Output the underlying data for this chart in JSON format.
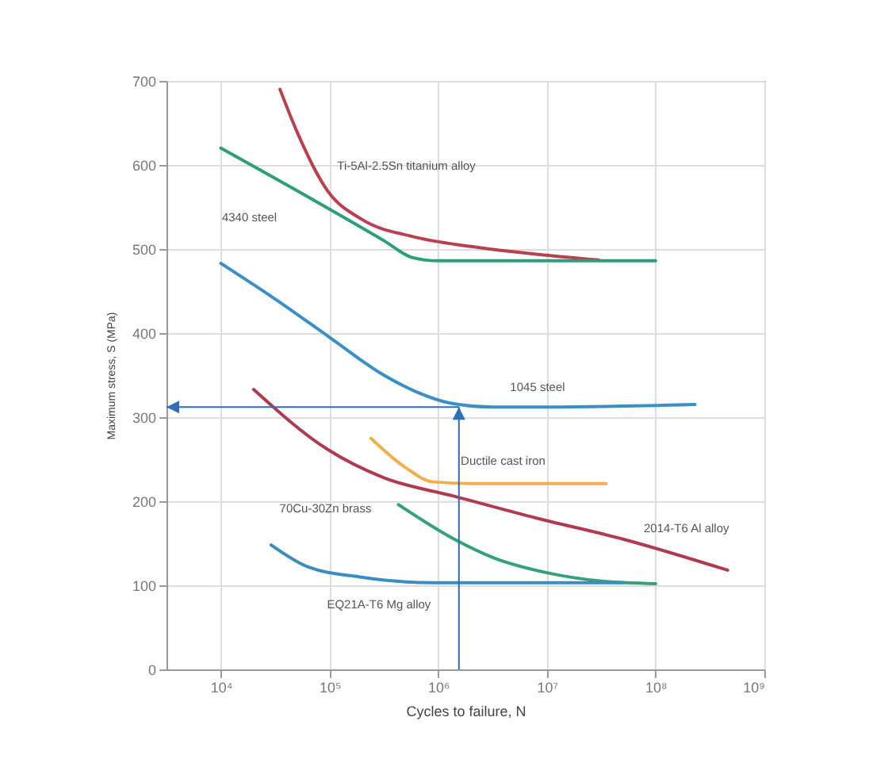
{
  "chart_data": {
    "type": "line",
    "xlabel": "Cycles to failure, N",
    "ylabel": "Maximum stress, S (MPa)",
    "log": "x",
    "xlim": [
      3162,
      1000000000
    ],
    "xticks": [
      {
        "value": 10000,
        "label": "10⁴"
      },
      {
        "value": 100000,
        "label": "10⁵"
      },
      {
        "value": 1000000,
        "label": "10⁶"
      },
      {
        "value": 10000000,
        "label": "10⁷"
      },
      {
        "value": 100000000,
        "label": "10⁸"
      },
      {
        "value": 1000000000,
        "label": "10⁹"
      }
    ],
    "ylim": [
      0,
      700
    ],
    "yticks": [
      0,
      100,
      200,
      300,
      400,
      500,
      600,
      700
    ],
    "grid": true,
    "series": [
      {
        "name": "Ti-5Al-2.5Sn titanium alloy",
        "color": "#b8404f",
        "x": [
          35000,
          50000,
          95000,
          200000,
          575000,
          2000000,
          9300000,
          30000000
        ],
        "values": [
          690,
          640,
          570,
          535,
          515,
          503,
          493,
          487
        ]
      },
      {
        "name": "4340 steel",
        "color": "#2e9e7a",
        "x": [
          10000,
          316000,
          575000,
          1000000,
          100000000
        ],
        "values": [
          620,
          510,
          490,
          486,
          486
        ]
      },
      {
        "name": "1045 steel",
        "color": "#3a8fc4",
        "x": [
          10000,
          32000,
          100000,
          316000,
          630000,
          1260000,
          3200000,
          10000000,
          230000000
        ],
        "values": [
          483,
          440,
          395,
          350,
          330,
          317,
          312,
          312,
          315
        ]
      },
      {
        "name": "Ductile cast iron",
        "color": "#f0b050",
        "x": [
          240000,
          500000,
          900000,
          2000000,
          35000000
        ],
        "values": [
          275,
          240,
          223,
          221,
          221
        ]
      },
      {
        "name": "70Cu-30Zn brass",
        "color": "#35a07a",
        "x": [
          430000,
          1400000,
          3200000,
          10000000,
          32000000,
          100000000
        ],
        "values": [
          196,
          155,
          133,
          115,
          105,
          102
        ]
      },
      {
        "name": "2014-T6 Al alloy",
        "color": "#b03a4e",
        "x": [
          20000,
          95000,
          316000,
          1400000,
          8000000,
          50000000,
          460000000
        ],
        "values": [
          333,
          262,
          228,
          206,
          180,
          155,
          118
        ]
      },
      {
        "name": "EQ21A-T6 Mg alloy",
        "color": "#3d8cc0",
        "x": [
          29000,
          63000,
          190000,
          900000,
          10000000,
          50000000
        ],
        "values": [
          148,
          122,
          110,
          103,
          103,
          103
        ]
      }
    ],
    "ref_lines": [
      {
        "axis": "x",
        "value": 1550000,
        "color": "#2f6db5"
      },
      {
        "axis": "y",
        "value": 312,
        "color": "#2f6db5"
      }
    ]
  }
}
